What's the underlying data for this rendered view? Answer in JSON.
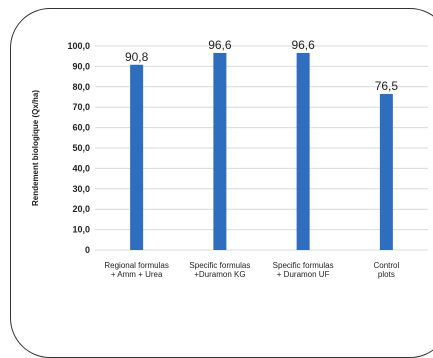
{
  "chart_data": {
    "type": "bar",
    "categories": [
      [
        "Regional formulas",
        "+ Amm + Urea"
      ],
      [
        "Specific formulas",
        "+Duramon KG"
      ],
      [
        "Specific formulas",
        "+ Duramon UF"
      ],
      [
        "Control",
        "plots"
      ]
    ],
    "values": [
      90.8,
      96.6,
      96.6,
      76.5
    ],
    "data_labels": [
      "90,8",
      "96,6",
      "96,6",
      "76,5"
    ],
    "ylabel": "Rendement biologique  (Qx/ha)",
    "ylim": [
      0,
      100
    ],
    "yticks": [
      "0",
      "10,0",
      "20,0",
      "30,0",
      "40,0",
      "50,0",
      "60,0",
      "70,0",
      "80,0",
      "90,0",
      "100,0"
    ],
    "grid": true,
    "bar_color": "#2f6dbf",
    "grid_color": "#d9d9d9"
  }
}
